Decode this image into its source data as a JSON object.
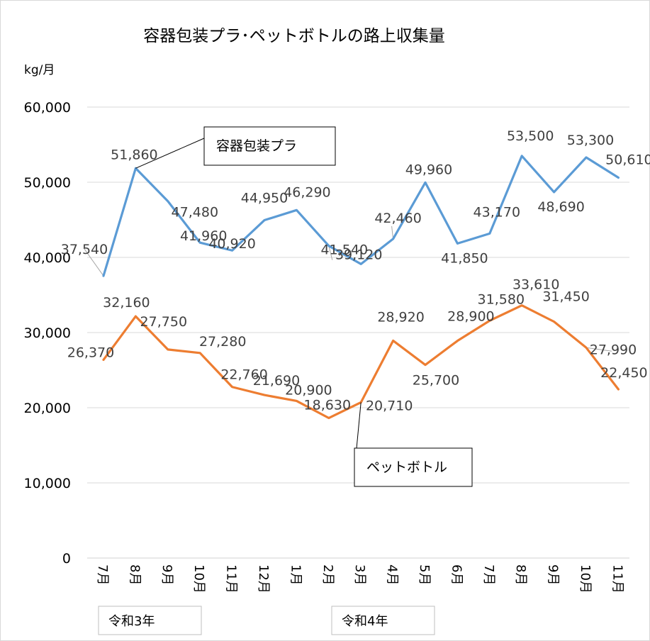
{
  "chart_data": {
    "type": "line",
    "title": "容器包装プラ･ペットボトルの路上収集量",
    "ylabel": "kg/月",
    "xlabel": "",
    "ylim": [
      0,
      60000
    ],
    "y_ticks": [
      "0",
      "10,000",
      "20,000",
      "30,000",
      "40,000",
      "50,000",
      "60,000"
    ],
    "y_tick_values": [
      0,
      10000,
      20000,
      30000,
      40000,
      50000,
      60000
    ],
    "grid": true,
    "categories": [
      "7月",
      "8月",
      "9月",
      "10月",
      "11月",
      "12月",
      "1月",
      "2月",
      "3月",
      "4月",
      "5月",
      "6月",
      "7月",
      "8月",
      "9月",
      "10月",
      "11月"
    ],
    "year_labels": [
      "令和3年",
      "令和4年"
    ],
    "series": [
      {
        "name": "容器包装プラ",
        "color": "#5B9BD5",
        "values": [
          37540,
          51860,
          47480,
          41960,
          40920,
          44950,
          46290,
          41540,
          39120,
          42460,
          49960,
          41850,
          43170,
          53500,
          48690,
          53300,
          50610
        ],
        "labels": [
          "37,540",
          "51,860",
          "47,480",
          "41,960",
          "40,920",
          "44,950",
          "46,290",
          "41,540",
          "39,120",
          "42,460",
          "49,960",
          "41,850",
          "43,170",
          "53,500",
          "48,690",
          "53,300",
          "50,610"
        ]
      },
      {
        "name": "ペットボトル",
        "color": "#ED7D31",
        "values": [
          26370,
          32160,
          27750,
          27280,
          22760,
          21690,
          20900,
          18630,
          20710,
          28920,
          25700,
          28900,
          31580,
          33610,
          31450,
          27990,
          22450
        ],
        "labels": [
          "26,370",
          "32,160",
          "27,750",
          "27,280",
          "22,760",
          "21,690",
          "20,900",
          "18,630",
          "20,710",
          "28,920",
          "25,700",
          "28,900",
          "31,580",
          "33,610",
          "31,450",
          "27,990",
          "22,450"
        ]
      }
    ]
  }
}
